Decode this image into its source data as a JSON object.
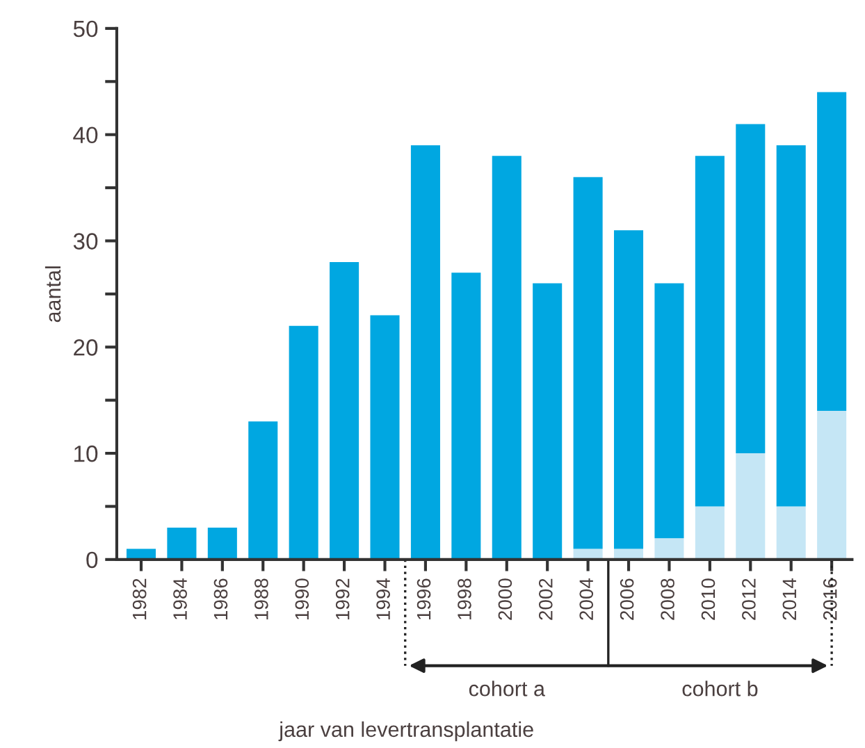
{
  "chart_data": {
    "type": "bar",
    "stacked": true,
    "ylabel": "aantal",
    "xlabel": "jaar van levertransplantatie",
    "categories": [
      "1982",
      "1984",
      "1986",
      "1988",
      "1990",
      "1992",
      "1994",
      "1996",
      "1998",
      "2000",
      "2002",
      "2004",
      "2006",
      "2008",
      "2010",
      "2012",
      "2014",
      "2016"
    ],
    "series": [
      {
        "color": "#c5e6f5",
        "values": [
          0,
          0,
          0,
          0,
          0,
          0,
          0,
          0,
          0,
          0,
          0,
          1,
          1,
          2,
          5,
          10,
          5,
          14
        ]
      },
      {
        "color": "#00a7e1",
        "values": [
          1,
          3,
          3,
          13,
          22,
          28,
          23,
          39,
          27,
          38,
          26,
          35,
          30,
          24,
          33,
          31,
          34,
          30
        ]
      }
    ],
    "ylim": [
      0,
      50
    ],
    "yticks": [
      0,
      {
        "value": 5,
        "label": null
      },
      10,
      {
        "value": 15,
        "label": null
      },
      20,
      {
        "value": 25,
        "label": null
      },
      30,
      {
        "value": 35,
        "label": null
      },
      40,
      {
        "value": 45,
        "label": null
      },
      50
    ],
    "grid": false,
    "annotations": [
      "cohort a",
      "cohort b"
    ]
  }
}
